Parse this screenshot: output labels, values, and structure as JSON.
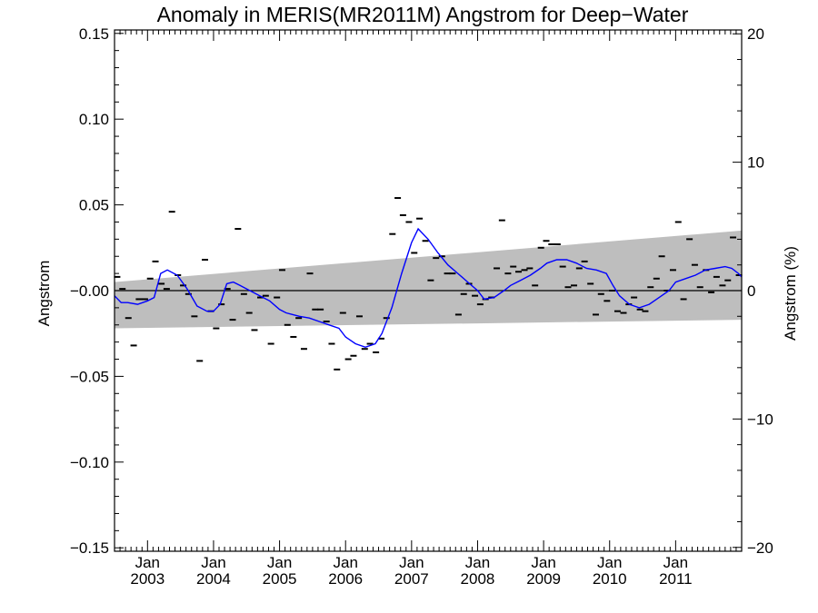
{
  "chart_data": {
    "type": "line",
    "title": "Anomaly in MERIS(MR2011M) Angstrom for Deep−Water",
    "ylabel": "Angstrom",
    "ylabel_right": "Angstrom (%)",
    "xlim": [
      2002.5,
      2012.0
    ],
    "ylim": [
      -0.152,
      0.152
    ],
    "ylim_right": [
      -20.3,
      20.3
    ],
    "yticks": [
      -0.15,
      -0.1,
      -0.05,
      0.0,
      0.05,
      0.1,
      0.15
    ],
    "ytick_labels": [
      "−0.15",
      "−0.10",
      "−0.05",
      "−0.00",
      "0.05",
      "0.10",
      "0.15"
    ],
    "yticks_right": [
      -20,
      -10,
      0,
      10,
      20
    ],
    "ytick_labels_right": [
      "−20",
      "−10",
      "0",
      "10",
      "20"
    ],
    "xticks": [
      2003,
      2004,
      2005,
      2006,
      2007,
      2008,
      2009,
      2010,
      2011
    ],
    "xtick_labels_month": [
      "Jan",
      "Jan",
      "Jan",
      "Jan",
      "Jan",
      "Jan",
      "Jan",
      "Jan",
      "Jan"
    ],
    "xtick_labels_year": [
      "2003",
      "2004",
      "2005",
      "2006",
      "2007",
      "2008",
      "2009",
      "2010",
      "2011"
    ],
    "zero_line": 0,
    "band": {
      "x": [
        2002.5,
        2012.0
      ],
      "upper": [
        0.005,
        0.035
      ],
      "lower": [
        -0.022,
        -0.017
      ],
      "color": "#bebebe"
    },
    "series": [
      {
        "role": "monthly",
        "marker": "dash",
        "color": "#000000",
        "x": [
          2002.54,
          2002.62,
          2002.71,
          2002.79,
          2002.87,
          2002.96,
          2003.04,
          2003.12,
          2003.21,
          2003.29,
          2003.37,
          2003.46,
          2003.54,
          2003.62,
          2003.71,
          2003.79,
          2003.87,
          2003.96,
          2004.04,
          2004.12,
          2004.21,
          2004.29,
          2004.37,
          2004.46,
          2004.54,
          2004.62,
          2004.71,
          2004.79,
          2004.87,
          2004.96,
          2005.04,
          2005.12,
          2005.21,
          2005.29,
          2005.37,
          2005.46,
          2005.54,
          2005.62,
          2005.71,
          2005.79,
          2005.87,
          2005.96,
          2006.04,
          2006.12,
          2006.21,
          2006.29,
          2006.37,
          2006.46,
          2006.54,
          2006.62,
          2006.71,
          2006.79,
          2006.87,
          2006.96,
          2007.04,
          2007.12,
          2007.21,
          2007.29,
          2007.37,
          2007.46,
          2007.54,
          2007.62,
          2007.71,
          2007.79,
          2007.87,
          2007.96,
          2008.04,
          2008.12,
          2008.21,
          2008.29,
          2008.37,
          2008.46,
          2008.54,
          2008.62,
          2008.71,
          2008.79,
          2008.87,
          2008.96,
          2009.04,
          2009.12,
          2009.21,
          2009.29,
          2009.37,
          2009.46,
          2009.54,
          2009.62,
          2009.71,
          2009.79,
          2009.87,
          2009.96,
          2010.04,
          2010.12,
          2010.21,
          2010.29,
          2010.37,
          2010.46,
          2010.54,
          2010.62,
          2010.71,
          2010.79,
          2010.87,
          2010.96,
          2011.04,
          2011.12,
          2011.21,
          2011.29,
          2011.37,
          2011.46,
          2011.54,
          2011.62,
          2011.71,
          2011.79,
          2011.87,
          2011.96
        ],
        "y": [
          0.008,
          0.001,
          -0.016,
          -0.032,
          -0.005,
          -0.005,
          0.007,
          0.017,
          0.004,
          0.001,
          0.046,
          0.009,
          0.003,
          -0.002,
          -0.015,
          -0.041,
          0.018,
          -0.012,
          -0.022,
          -0.008,
          0.001,
          -0.017,
          0.036,
          -0.002,
          -0.013,
          -0.023,
          -0.004,
          -0.003,
          -0.031,
          -0.004,
          0.012,
          -0.02,
          -0.027,
          -0.016,
          -0.034,
          0.01,
          -0.011,
          -0.011,
          -0.018,
          -0.031,
          -0.046,
          -0.013,
          -0.04,
          -0.038,
          -0.015,
          -0.034,
          -0.031,
          -0.036,
          -0.028,
          -0.016,
          0.033,
          0.054,
          0.044,
          0.04,
          0.022,
          0.042,
          0.029,
          0.006,
          0.019,
          0.02,
          0.01,
          0.01,
          -0.014,
          -0.002,
          0.004,
          -0.003,
          -0.008,
          -0.005,
          -0.004,
          0.013,
          0.041,
          0.01,
          0.014,
          0.011,
          0.012,
          0.013,
          0.003,
          0.025,
          0.029,
          0.027,
          0.027,
          0.014,
          0.002,
          0.003,
          0.013,
          0.017,
          0.004,
          -0.014,
          -0.002,
          -0.006,
          0.0,
          -0.012,
          -0.013,
          -0.008,
          -0.004,
          -0.011,
          -0.012,
          0.002,
          0.007,
          0.02,
          0.0,
          0.012,
          0.04,
          -0.005,
          0.03,
          0.015,
          0.002,
          0.012,
          -0.001,
          0.008,
          0.003,
          0.006,
          0.031,
          0.009
        ]
      },
      {
        "role": "running-mean",
        "marker": "line",
        "color": "#0000ff",
        "x": [
          2002.5,
          2002.6,
          2002.7,
          2002.85,
          2003.0,
          2003.1,
          2003.2,
          2003.3,
          2003.45,
          2003.6,
          2003.75,
          2003.9,
          2004.0,
          2004.1,
          2004.2,
          2004.3,
          2004.4,
          2004.55,
          2004.7,
          2004.85,
          2005.0,
          2005.1,
          2005.2,
          2005.3,
          2005.45,
          2005.6,
          2005.75,
          2005.9,
          2006.0,
          2006.15,
          2006.3,
          2006.45,
          2006.55,
          2006.7,
          2006.85,
          2007.0,
          2007.1,
          2007.25,
          2007.4,
          2007.55,
          2007.7,
          2007.85,
          2008.0,
          2008.1,
          2008.25,
          2008.4,
          2008.5,
          2008.65,
          2008.8,
          2008.95,
          2009.05,
          2009.2,
          2009.35,
          2009.5,
          2009.65,
          2009.8,
          2009.95,
          2010.05,
          2010.15,
          2010.3,
          2010.45,
          2010.6,
          2010.75,
          2010.9,
          2011.0,
          2011.15,
          2011.3,
          2011.45,
          2011.6,
          2011.75,
          2011.85,
          2011.95,
          2012.0
        ],
        "y": [
          -0.003,
          -0.007,
          -0.007,
          -0.008,
          -0.006,
          -0.004,
          0.01,
          0.012,
          0.009,
          0.001,
          -0.009,
          -0.012,
          -0.012,
          -0.008,
          0.004,
          0.005,
          0.003,
          0.0,
          -0.003,
          -0.006,
          -0.011,
          -0.013,
          -0.014,
          -0.015,
          -0.016,
          -0.018,
          -0.02,
          -0.022,
          -0.027,
          -0.031,
          -0.033,
          -0.031,
          -0.025,
          -0.01,
          0.01,
          0.028,
          0.036,
          0.03,
          0.022,
          0.015,
          0.01,
          0.005,
          0.0,
          -0.005,
          -0.004,
          0.0,
          0.003,
          0.006,
          0.009,
          0.013,
          0.016,
          0.018,
          0.018,
          0.016,
          0.013,
          0.012,
          0.01,
          0.003,
          -0.003,
          -0.008,
          -0.01,
          -0.008,
          -0.004,
          0.0,
          0.005,
          0.007,
          0.009,
          0.012,
          0.013,
          0.014,
          0.013,
          0.01,
          0.008
        ]
      }
    ]
  }
}
